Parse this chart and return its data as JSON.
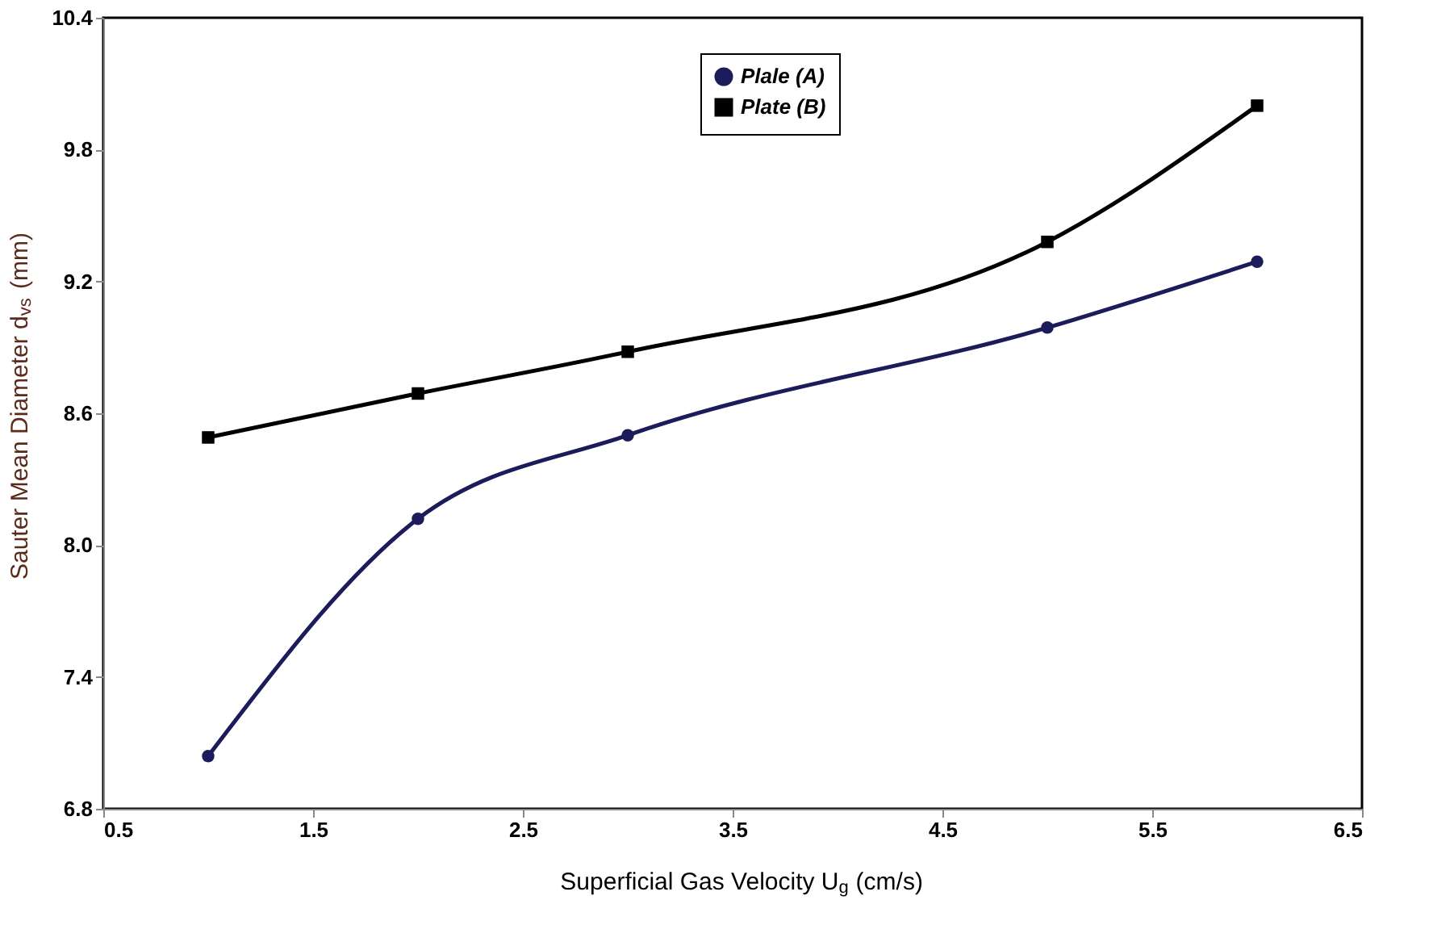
{
  "chart_data": {
    "type": "line",
    "xlabel": "Superficial Gas Velocity U$_{g}$ (cm/s)",
    "ylabel": "Sauter Mean Diameter d$_{vs}$ (mm)",
    "x": [
      1,
      2,
      3,
      5,
      6
    ],
    "series": [
      {
        "name": "Plale (A)",
        "color": "#1c1c5a",
        "marker": "circle",
        "values": [
          7.04,
          8.12,
          8.5,
          8.99,
          9.29
        ]
      },
      {
        "name": "Plate (B)",
        "color": "#000000",
        "marker": "square",
        "values": [
          8.49,
          8.69,
          8.88,
          9.38,
          10.0
        ]
      }
    ],
    "xlim": [
      0.5,
      6.5
    ],
    "xticks": [
      0.5,
      1.5,
      2.5,
      3.5,
      4.5,
      5.5,
      6.5
    ],
    "ylim": [
      6.8,
      10.4
    ],
    "yticks": [
      6.8,
      7.4,
      {
        "value": 8.0,
        "label": "8.0"
      },
      8.6,
      9.2,
      9.8,
      10.4
    ],
    "grid": false,
    "legend": "top",
    "line_style": "solid"
  }
}
